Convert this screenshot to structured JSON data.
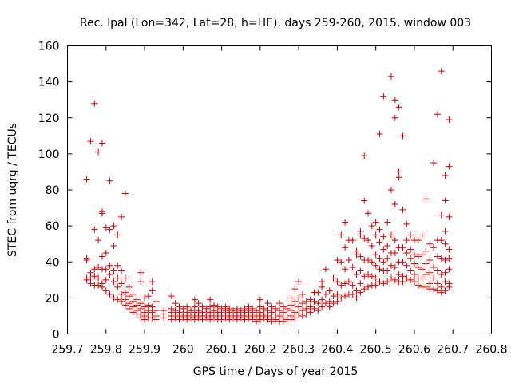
{
  "chart_data": {
    "type": "scatter",
    "title": "Rec. lpal (Lon=342, Lat=28, h=HE), days 259-260, 2015, window 003",
    "xlabel": "GPS time / Days of year 2015",
    "ylabel": "STEC from uqrg / TECUs",
    "xlim": [
      259.7,
      260.8
    ],
    "ylim": [
      0,
      160
    ],
    "xticks": [
      "259.7",
      "259.8",
      "259.9",
      "260",
      "260.1",
      "260.2",
      "260.3",
      "260.4",
      "260.5",
      "260.6",
      "260.7",
      "260.8"
    ],
    "yticks": [
      "0",
      "20",
      "40",
      "60",
      "80",
      "100",
      "120",
      "140",
      "160"
    ],
    "grid": false,
    "legend": "none",
    "marker": "plus",
    "color": "#cc0000",
    "points": [
      [
        259.75,
        86
      ],
      [
        259.75,
        42
      ],
      [
        259.75,
        41
      ],
      [
        259.75,
        31
      ],
      [
        259.75,
        30
      ],
      [
        259.76,
        107
      ],
      [
        259.76,
        34
      ],
      [
        259.76,
        31
      ],
      [
        259.76,
        28
      ],
      [
        259.77,
        128
      ],
      [
        259.77,
        58
      ],
      [
        259.77,
        36
      ],
      [
        259.77,
        32
      ],
      [
        259.77,
        27
      ],
      [
        259.78,
        101
      ],
      [
        259.78,
        52
      ],
      [
        259.78,
        37
      ],
      [
        259.78,
        31
      ],
      [
        259.78,
        27
      ],
      [
        259.79,
        106
      ],
      [
        259.79,
        68
      ],
      [
        259.79,
        67
      ],
      [
        259.79,
        43
      ],
      [
        259.79,
        36
      ],
      [
        259.79,
        28
      ],
      [
        259.79,
        26
      ],
      [
        259.8,
        59
      ],
      [
        259.8,
        45
      ],
      [
        259.8,
        36
      ],
      [
        259.8,
        30
      ],
      [
        259.8,
        24
      ],
      [
        259.81,
        85
      ],
      [
        259.81,
        58
      ],
      [
        259.81,
        38
      ],
      [
        259.81,
        33
      ],
      [
        259.81,
        22
      ],
      [
        259.82,
        60
      ],
      [
        259.82,
        49
      ],
      [
        259.82,
        35
      ],
      [
        259.82,
        29
      ],
      [
        259.82,
        20
      ],
      [
        259.83,
        55
      ],
      [
        259.83,
        38
      ],
      [
        259.83,
        31
      ],
      [
        259.83,
        26
      ],
      [
        259.83,
        19
      ],
      [
        259.84,
        65
      ],
      [
        259.84,
        35
      ],
      [
        259.84,
        28
      ],
      [
        259.84,
        22
      ],
      [
        259.84,
        18
      ],
      [
        259.85,
        78
      ],
      [
        259.85,
        31
      ],
      [
        259.85,
        23
      ],
      [
        259.85,
        19
      ],
      [
        259.85,
        16
      ],
      [
        259.86,
        26
      ],
      [
        259.86,
        21
      ],
      [
        259.86,
        17
      ],
      [
        259.86,
        14
      ],
      [
        259.87,
        22
      ],
      [
        259.87,
        18
      ],
      [
        259.87,
        15
      ],
      [
        259.87,
        12
      ],
      [
        259.88,
        19
      ],
      [
        259.88,
        16
      ],
      [
        259.88,
        13
      ],
      [
        259.88,
        11
      ],
      [
        259.89,
        34
      ],
      [
        259.89,
        29
      ],
      [
        259.89,
        17
      ],
      [
        259.89,
        14
      ],
      [
        259.89,
        11
      ],
      [
        259.89,
        9
      ],
      [
        259.9,
        20
      ],
      [
        259.9,
        15
      ],
      [
        259.9,
        12
      ],
      [
        259.9,
        10
      ],
      [
        259.9,
        8
      ],
      [
        259.91,
        21
      ],
      [
        259.91,
        16
      ],
      [
        259.91,
        13
      ],
      [
        259.91,
        11
      ],
      [
        259.91,
        9
      ],
      [
        259.92,
        29
      ],
      [
        259.92,
        24
      ],
      [
        259.92,
        15
      ],
      [
        259.92,
        12
      ],
      [
        259.92,
        9
      ],
      [
        259.93,
        18
      ],
      [
        259.93,
        13
      ],
      [
        259.93,
        10
      ],
      [
        259.93,
        8
      ],
      [
        259.95,
        13
      ],
      [
        259.95,
        11
      ],
      [
        259.95,
        9
      ],
      [
        259.97,
        21
      ],
      [
        259.97,
        14
      ],
      [
        259.97,
        12
      ],
      [
        259.97,
        10
      ],
      [
        259.97,
        8
      ],
      [
        259.98,
        17
      ],
      [
        259.98,
        13
      ],
      [
        259.98,
        11
      ],
      [
        259.98,
        9
      ],
      [
        259.99,
        15
      ],
      [
        259.99,
        12
      ],
      [
        259.99,
        10
      ],
      [
        259.99,
        8
      ],
      [
        260.0,
        14
      ],
      [
        260.0,
        11
      ],
      [
        260.0,
        9
      ],
      [
        260.01,
        15
      ],
      [
        260.01,
        12
      ],
      [
        260.01,
        10
      ],
      [
        260.01,
        8
      ],
      [
        260.02,
        13
      ],
      [
        260.02,
        11
      ],
      [
        260.02,
        9
      ],
      [
        260.03,
        19
      ],
      [
        260.03,
        15
      ],
      [
        260.03,
        12
      ],
      [
        260.03,
        10
      ],
      [
        260.03,
        8
      ],
      [
        260.04,
        17
      ],
      [
        260.04,
        13
      ],
      [
        260.04,
        11
      ],
      [
        260.04,
        9
      ],
      [
        260.05,
        15
      ],
      [
        260.05,
        12
      ],
      [
        260.05,
        10
      ],
      [
        260.05,
        8
      ],
      [
        260.06,
        14
      ],
      [
        260.06,
        11
      ],
      [
        260.06,
        9
      ],
      [
        260.07,
        19
      ],
      [
        260.07,
        15
      ],
      [
        260.07,
        12
      ],
      [
        260.07,
        10
      ],
      [
        260.07,
        8
      ],
      [
        260.08,
        16
      ],
      [
        260.08,
        13
      ],
      [
        260.08,
        11
      ],
      [
        260.08,
        9
      ],
      [
        260.09,
        15
      ],
      [
        260.09,
        12
      ],
      [
        260.09,
        10
      ],
      [
        260.09,
        8
      ],
      [
        260.1,
        14
      ],
      [
        260.1,
        12
      ],
      [
        260.1,
        10
      ],
      [
        260.1,
        8
      ],
      [
        260.11,
        15
      ],
      [
        260.11,
        13
      ],
      [
        260.11,
        11
      ],
      [
        260.11,
        9
      ],
      [
        260.12,
        14
      ],
      [
        260.12,
        12
      ],
      [
        260.12,
        10
      ],
      [
        260.12,
        8
      ],
      [
        260.13,
        13
      ],
      [
        260.13,
        11
      ],
      [
        260.13,
        9
      ],
      [
        260.14,
        14
      ],
      [
        260.14,
        12
      ],
      [
        260.14,
        10
      ],
      [
        260.14,
        8
      ],
      [
        260.15,
        13
      ],
      [
        260.15,
        11
      ],
      [
        260.15,
        9
      ],
      [
        260.16,
        14
      ],
      [
        260.16,
        12
      ],
      [
        260.16,
        10
      ],
      [
        260.16,
        8
      ],
      [
        260.17,
        15
      ],
      [
        260.17,
        13
      ],
      [
        260.17,
        11
      ],
      [
        260.17,
        9
      ],
      [
        260.18,
        14
      ],
      [
        260.18,
        12
      ],
      [
        260.18,
        10
      ],
      [
        260.18,
        8
      ],
      [
        260.19,
        13
      ],
      [
        260.19,
        11
      ],
      [
        260.19,
        9
      ],
      [
        260.19,
        7
      ],
      [
        260.2,
        19
      ],
      [
        260.2,
        15
      ],
      [
        260.2,
        12
      ],
      [
        260.2,
        10
      ],
      [
        260.2,
        8
      ],
      [
        260.21,
        14
      ],
      [
        260.21,
        11
      ],
      [
        260.21,
        9
      ],
      [
        260.22,
        17
      ],
      [
        260.22,
        13
      ],
      [
        260.22,
        10
      ],
      [
        260.22,
        8
      ],
      [
        260.23,
        15
      ],
      [
        260.23,
        12
      ],
      [
        260.23,
        9
      ],
      [
        260.23,
        7
      ],
      [
        260.24,
        14
      ],
      [
        260.24,
        11
      ],
      [
        260.24,
        8
      ],
      [
        260.25,
        17
      ],
      [
        260.25,
        13
      ],
      [
        260.25,
        10
      ],
      [
        260.25,
        7
      ],
      [
        260.26,
        15
      ],
      [
        260.26,
        12
      ],
      [
        260.26,
        9
      ],
      [
        260.26,
        7
      ],
      [
        260.27,
        14
      ],
      [
        260.27,
        11
      ],
      [
        260.27,
        8
      ],
      [
        260.28,
        20
      ],
      [
        260.28,
        16
      ],
      [
        260.28,
        13
      ],
      [
        260.28,
        10
      ],
      [
        260.28,
        8
      ],
      [
        260.29,
        25
      ],
      [
        260.29,
        18
      ],
      [
        260.29,
        12
      ],
      [
        260.29,
        9
      ],
      [
        260.3,
        29
      ],
      [
        260.3,
        20
      ],
      [
        260.3,
        15
      ],
      [
        260.3,
        11
      ],
      [
        260.31,
        22
      ],
      [
        260.31,
        17
      ],
      [
        260.31,
        13
      ],
      [
        260.31,
        10
      ],
      [
        260.32,
        18
      ],
      [
        260.32,
        14
      ],
      [
        260.32,
        11
      ],
      [
        260.33,
        19
      ],
      [
        260.33,
        15
      ],
      [
        260.33,
        12
      ],
      [
        260.34,
        23
      ],
      [
        260.34,
        18
      ],
      [
        260.34,
        14
      ],
      [
        260.35,
        23
      ],
      [
        260.35,
        17
      ],
      [
        260.35,
        13
      ],
      [
        260.36,
        29
      ],
      [
        260.36,
        26
      ],
      [
        260.36,
        19
      ],
      [
        260.36,
        15
      ],
      [
        260.37,
        36
      ],
      [
        260.37,
        22
      ],
      [
        260.37,
        17
      ],
      [
        260.38,
        24
      ],
      [
        260.38,
        18
      ],
      [
        260.38,
        15
      ],
      [
        260.39,
        31
      ],
      [
        260.39,
        21
      ],
      [
        260.39,
        17
      ],
      [
        260.4,
        41
      ],
      [
        260.4,
        29
      ],
      [
        260.4,
        22
      ],
      [
        260.4,
        18
      ],
      [
        260.41,
        55
      ],
      [
        260.41,
        40
      ],
      [
        260.41,
        27
      ],
      [
        260.41,
        20
      ],
      [
        260.42,
        62
      ],
      [
        260.42,
        48
      ],
      [
        260.42,
        36
      ],
      [
        260.42,
        28
      ],
      [
        260.42,
        21
      ],
      [
        260.43,
        52
      ],
      [
        260.43,
        41
      ],
      [
        260.43,
        29
      ],
      [
        260.43,
        22
      ],
      [
        260.44,
        52
      ],
      [
        260.44,
        37
      ],
      [
        260.44,
        27
      ],
      [
        260.44,
        22
      ],
      [
        260.45,
        46
      ],
      [
        260.45,
        44
      ],
      [
        260.45,
        33
      ],
      [
        260.45,
        24
      ],
      [
        260.45,
        20
      ],
      [
        260.46,
        57
      ],
      [
        260.46,
        55
      ],
      [
        260.46,
        43
      ],
      [
        260.46,
        35
      ],
      [
        260.46,
        28
      ],
      [
        260.46,
        23
      ],
      [
        260.47,
        99
      ],
      [
        260.47,
        74
      ],
      [
        260.47,
        53
      ],
      [
        260.47,
        41
      ],
      [
        260.47,
        32
      ],
      [
        260.47,
        25
      ],
      [
        260.48,
        67
      ],
      [
        260.48,
        52
      ],
      [
        260.48,
        41
      ],
      [
        260.48,
        33
      ],
      [
        260.48,
        26
      ],
      [
        260.49,
        60
      ],
      [
        260.49,
        49
      ],
      [
        260.49,
        40
      ],
      [
        260.49,
        32
      ],
      [
        260.49,
        27
      ],
      [
        260.5,
        62
      ],
      [
        260.5,
        55
      ],
      [
        260.5,
        44
      ],
      [
        260.5,
        38
      ],
      [
        260.5,
        31
      ],
      [
        260.5,
        27
      ],
      [
        260.51,
        111
      ],
      [
        260.51,
        58
      ],
      [
        260.51,
        51
      ],
      [
        260.51,
        42
      ],
      [
        260.51,
        36
      ],
      [
        260.51,
        29
      ],
      [
        260.52,
        132
      ],
      [
        260.52,
        54
      ],
      [
        260.52,
        47
      ],
      [
        260.52,
        40
      ],
      [
        260.52,
        35
      ],
      [
        260.52,
        28
      ],
      [
        260.53,
        62
      ],
      [
        260.53,
        49
      ],
      [
        260.53,
        42
      ],
      [
        260.53,
        35
      ],
      [
        260.53,
        29
      ],
      [
        260.54,
        143
      ],
      [
        260.54,
        80
      ],
      [
        260.54,
        55
      ],
      [
        260.54,
        45
      ],
      [
        260.54,
        38
      ],
      [
        260.54,
        31
      ],
      [
        260.55,
        130
      ],
      [
        260.55,
        120
      ],
      [
        260.55,
        72
      ],
      [
        260.55,
        52
      ],
      [
        260.55,
        45
      ],
      [
        260.55,
        37
      ],
      [
        260.55,
        30
      ],
      [
        260.56,
        126
      ],
      [
        260.56,
        90
      ],
      [
        260.56,
        87
      ],
      [
        260.56,
        48
      ],
      [
        260.56,
        40
      ],
      [
        260.56,
        33
      ],
      [
        260.56,
        29
      ],
      [
        260.57,
        110
      ],
      [
        260.57,
        69
      ],
      [
        260.57,
        48
      ],
      [
        260.57,
        40
      ],
      [
        260.57,
        32
      ],
      [
        260.57,
        29
      ],
      [
        260.58,
        61
      ],
      [
        260.58,
        52
      ],
      [
        260.58,
        45
      ],
      [
        260.58,
        38
      ],
      [
        260.58,
        31
      ],
      [
        260.59,
        55
      ],
      [
        260.59,
        47
      ],
      [
        260.59,
        42
      ],
      [
        260.59,
        35
      ],
      [
        260.59,
        30
      ],
      [
        260.6,
        52
      ],
      [
        260.6,
        44
      ],
      [
        260.6,
        39
      ],
      [
        260.6,
        33
      ],
      [
        260.6,
        29
      ],
      [
        260.61,
        52
      ],
      [
        260.61,
        43
      ],
      [
        260.61,
        37
      ],
      [
        260.61,
        31
      ],
      [
        260.61,
        27
      ],
      [
        260.62,
        55
      ],
      [
        260.62,
        44
      ],
      [
        260.62,
        36
      ],
      [
        260.62,
        31
      ],
      [
        260.62,
        26
      ],
      [
        260.63,
        75
      ],
      [
        260.63,
        46
      ],
      [
        260.63,
        39
      ],
      [
        260.63,
        33
      ],
      [
        260.63,
        26
      ],
      [
        260.64,
        50
      ],
      [
        260.64,
        41
      ],
      [
        260.64,
        34
      ],
      [
        260.64,
        28
      ],
      [
        260.64,
        25
      ],
      [
        260.65,
        95
      ],
      [
        260.65,
        48
      ],
      [
        260.65,
        37
      ],
      [
        260.65,
        31
      ],
      [
        260.65,
        25
      ],
      [
        260.66,
        122
      ],
      [
        260.66,
        52
      ],
      [
        260.66,
        43
      ],
      [
        260.66,
        35
      ],
      [
        260.66,
        28
      ],
      [
        260.66,
        24
      ],
      [
        260.67,
        146
      ],
      [
        260.67,
        66
      ],
      [
        260.67,
        52
      ],
      [
        260.67,
        42
      ],
      [
        260.67,
        33
      ],
      [
        260.67,
        26
      ],
      [
        260.67,
        23
      ],
      [
        260.68,
        88
      ],
      [
        260.68,
        74
      ],
      [
        260.68,
        57
      ],
      [
        260.68,
        50
      ],
      [
        260.68,
        41
      ],
      [
        260.68,
        34
      ],
      [
        260.68,
        29
      ],
      [
        260.68,
        24
      ],
      [
        260.69,
        119
      ],
      [
        260.69,
        93
      ],
      [
        260.69,
        65
      ],
      [
        260.69,
        47
      ],
      [
        260.69,
        42
      ],
      [
        260.69,
        36
      ],
      [
        260.69,
        28
      ],
      [
        260.69,
        26
      ]
    ]
  }
}
